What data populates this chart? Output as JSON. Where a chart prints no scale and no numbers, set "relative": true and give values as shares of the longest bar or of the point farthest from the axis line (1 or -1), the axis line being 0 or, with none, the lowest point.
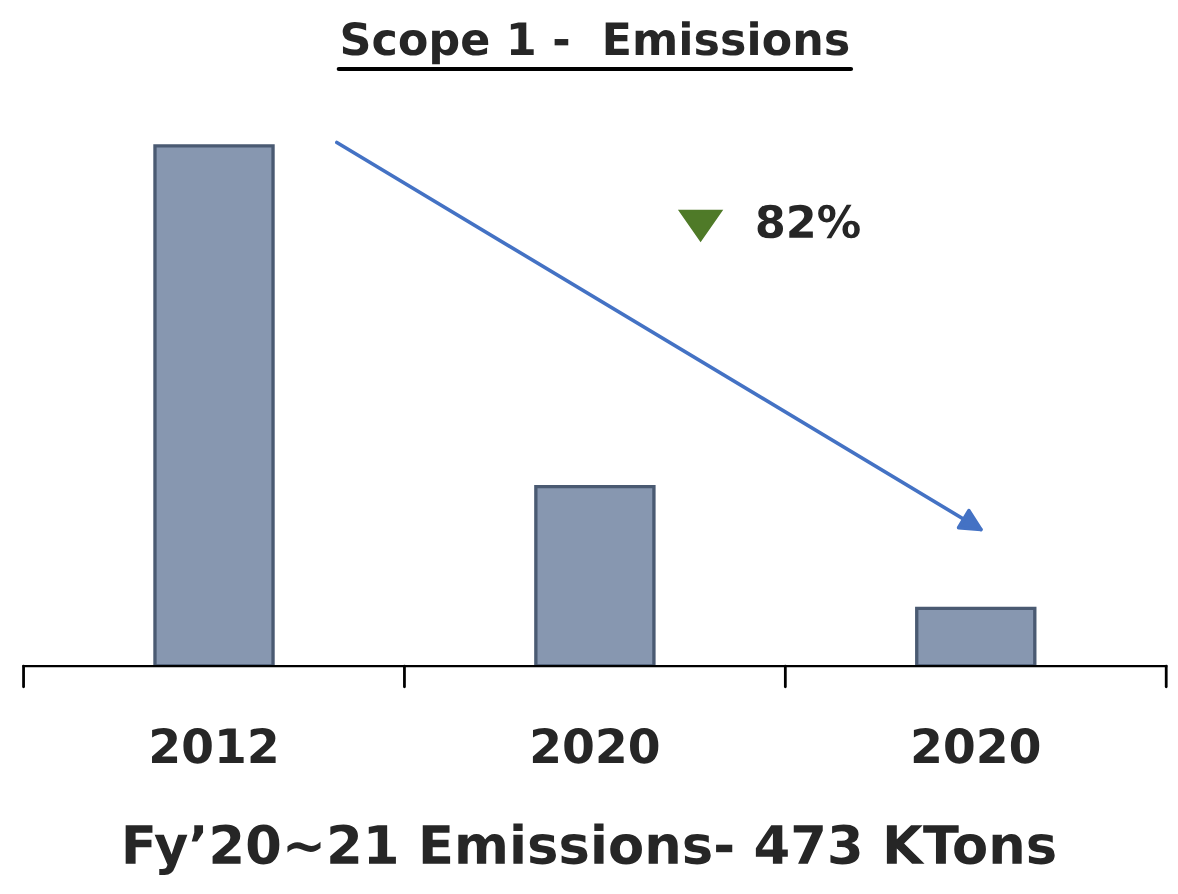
{
  "chart_data": {
    "type": "bar",
    "title": "Scope 1 -  Emissions",
    "categories": [
      "2012",
      "2020",
      "2020"
    ],
    "values": [
      1,
      0.345,
      0.111
    ],
    "color": "#8797b0",
    "relative": true,
    "grid": false,
    "legend": false,
    "annotations": [
      "82%",
      "Fy’20~21 Emissions- 473 KTons"
    ]
  }
}
